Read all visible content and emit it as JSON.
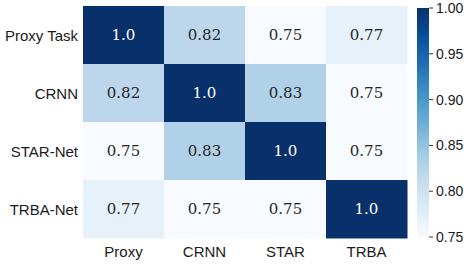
{
  "chart_data": {
    "type": "heatmap",
    "x_categories": [
      "Proxy",
      "CRNN",
      "STAR",
      "TRBA"
    ],
    "y_categories": [
      "Proxy Task",
      "CRNN",
      "STAR-Net",
      "TRBA-Net"
    ],
    "values": [
      [
        1.0,
        0.82,
        0.75,
        0.77
      ],
      [
        0.82,
        1.0,
        0.83,
        0.75
      ],
      [
        0.75,
        0.83,
        1.0,
        0.75
      ],
      [
        0.77,
        0.75,
        0.75,
        1.0
      ]
    ],
    "value_labels": [
      [
        "1.0",
        "0.82",
        "0.75",
        "0.77"
      ],
      [
        "0.82",
        "1.0",
        "0.83",
        "0.75"
      ],
      [
        "0.75",
        "0.83",
        "1.0",
        "0.75"
      ],
      [
        "0.77",
        "0.75",
        "0.75",
        "1.0"
      ]
    ],
    "data_labels": true,
    "color_range": [
      0.75,
      1.0
    ],
    "color_ticks": [
      0.75,
      {
        "value": 0.8,
        "label": "0.80"
      },
      0.85,
      {
        "value": 0.9,
        "label": "0.90"
      },
      0.95,
      {
        "value": 1.0,
        "label": "1.00"
      }
    ]
  }
}
